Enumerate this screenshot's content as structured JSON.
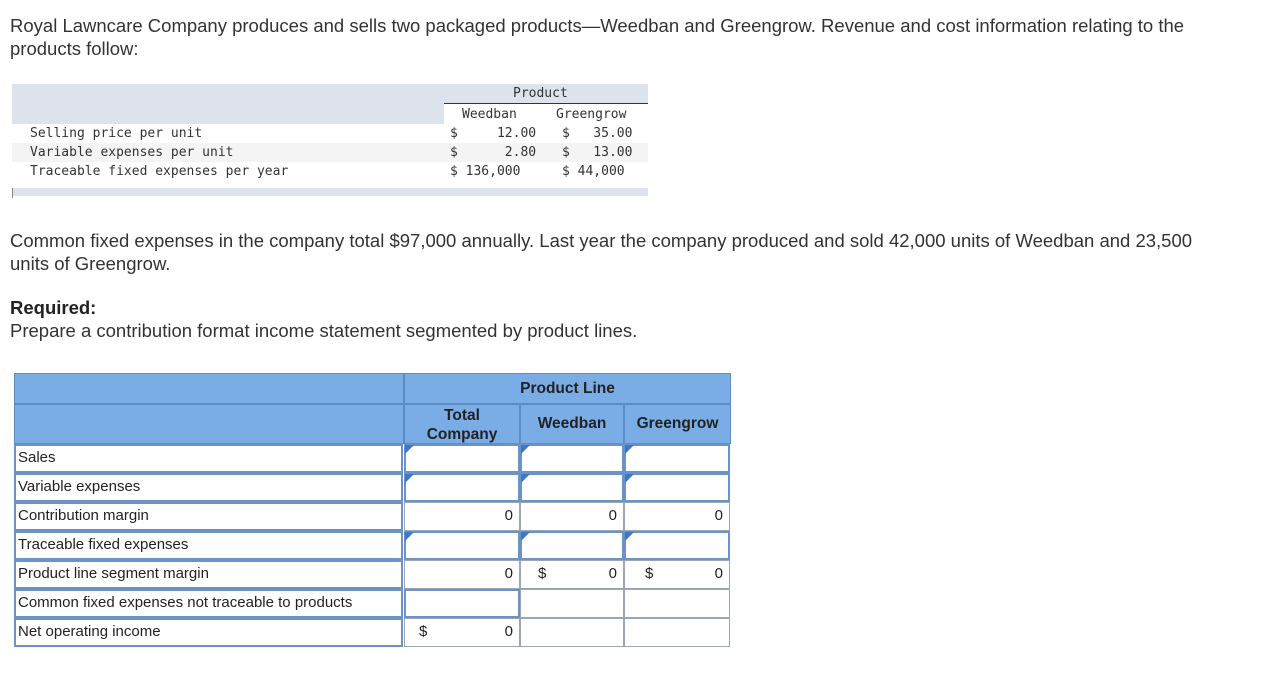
{
  "intro_text": "Royal Lawncare Company produces and sells two packaged products—Weedban and Greengrow. Revenue and cost information relating to the products follow:",
  "info_table": {
    "group_header": "Product",
    "col_headers": [
      "Weedban",
      "Greengrow"
    ],
    "rows": [
      {
        "label": "Selling price per unit",
        "weedban": "$     12.00",
        "greengrow": "$   35.00"
      },
      {
        "label": "Variable expenses per unit",
        "weedban": "$      2.80",
        "greengrow": "$   13.00"
      },
      {
        "label": "Traceable fixed expenses per year",
        "weedban": "$ 136,000",
        "greengrow": "$ 44,000"
      }
    ]
  },
  "common_text": "Common fixed expenses in the company total $97,000 annually. Last year the company produced and sold 42,000 units of Weedban and 23,500 units of Greengrow.",
  "required_title": "Required:",
  "required_text": "Prepare a contribution format income statement segmented by product lines.",
  "worksheet": {
    "group_header": "Product Line",
    "col_total": "Total Company",
    "col_weedban": "Weedban",
    "col_greengrow": "Greengrow",
    "rows": {
      "sales": "Sales",
      "variable_expenses": "Variable expenses",
      "contribution_margin": "Contribution margin",
      "traceable_fixed": "Traceable fixed expenses",
      "segment_margin": "Product line segment margin",
      "common_fixed": "Common fixed expenses not traceable to products",
      "net_income": "Net operating income"
    },
    "values": {
      "cm_total": "0",
      "cm_weedban": "0",
      "cm_greengrow": "0",
      "sm_total": "0",
      "sm_weedban": "0",
      "sm_greengrow": "0",
      "ni_total": "0"
    },
    "dollar_sign": "$"
  }
}
